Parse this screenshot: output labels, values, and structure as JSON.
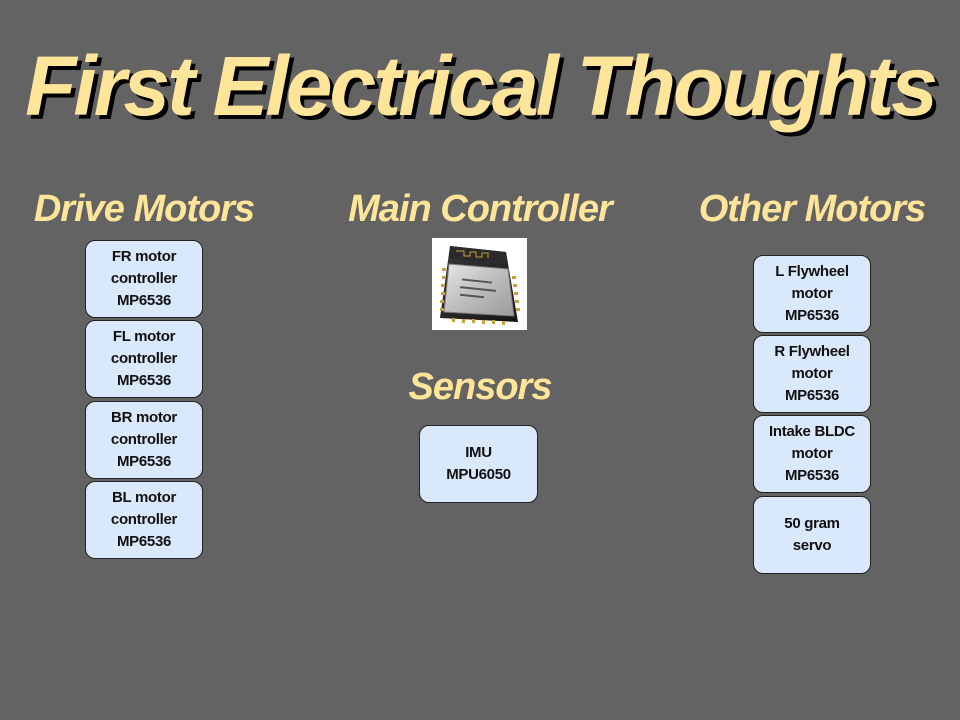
{
  "title": "First Electrical Thoughts",
  "sections": {
    "drive": {
      "heading": "Drive Motors",
      "items": [
        [
          "FR motor",
          "controller",
          "MP6536"
        ],
        [
          "FL motor",
          "controller",
          "MP6536"
        ],
        [
          "BR motor",
          "controller",
          "MP6536"
        ],
        [
          "BL motor",
          "controller",
          "MP6536"
        ]
      ]
    },
    "controller": {
      "heading": "Main Controller",
      "image": "esp32-module-photo"
    },
    "sensors": {
      "heading": "Sensors",
      "items": [
        [
          "IMU",
          "MPU6050"
        ]
      ]
    },
    "other": {
      "heading": "Other Motors",
      "items": [
        [
          "L Flywheel",
          "motor",
          "MP6536"
        ],
        [
          "R Flywheel",
          "motor",
          "MP6536"
        ],
        [
          "Intake BLDC",
          "motor",
          "MP6536"
        ],
        [
          "50 gram",
          "servo"
        ]
      ]
    }
  },
  "colors": {
    "background": "#636363",
    "heading": "#FFE599",
    "box_fill": "#DAE8FC",
    "box_border": "#222222"
  }
}
